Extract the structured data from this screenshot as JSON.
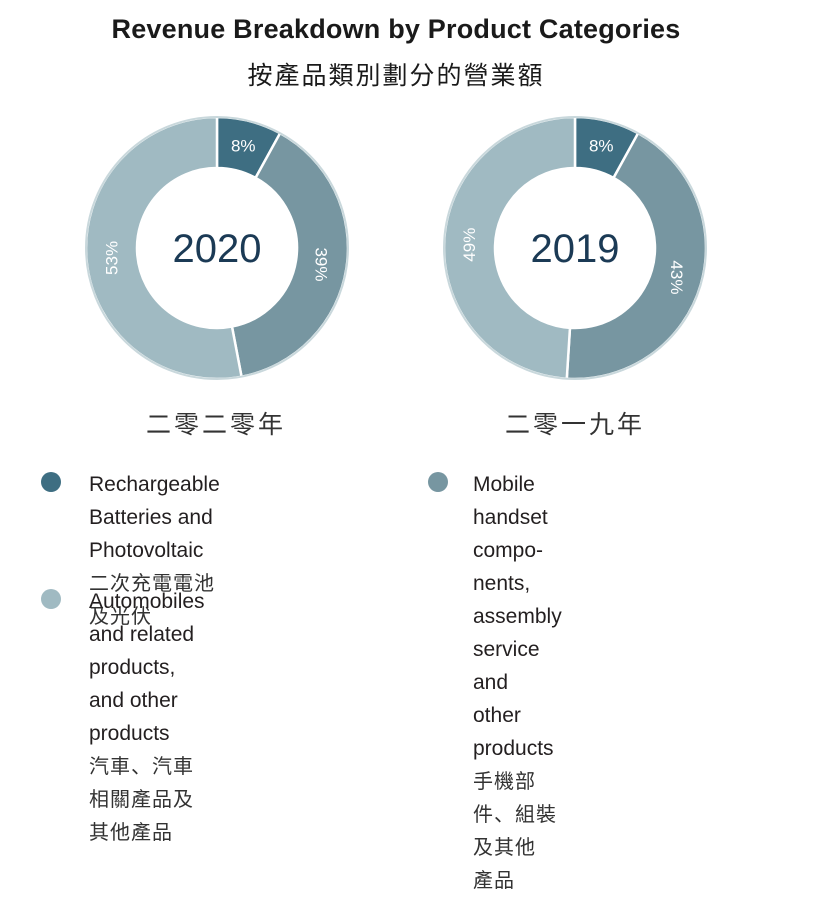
{
  "header": {
    "title_en": "Revenue Breakdown by Product Categories",
    "title_zh": "按產品類別劃分的營業額"
  },
  "colors": {
    "batteries": "#3e6e82",
    "mobile": "#7796a1",
    "automobiles": "#a0bac2",
    "center_text": "#1b3a55",
    "label_text": "#ffffff"
  },
  "chart_data": [
    {
      "type": "pie",
      "variant": "donut",
      "title": "2020",
      "subtitle_zh": "二零二零年",
      "categories": [
        "Rechargeable Batteries and Photovoltaic",
        "Mobile handset components, assembly service and other products",
        "Automobiles and related products, and other products"
      ],
      "values": [
        8,
        39,
        53
      ],
      "labels": [
        "8%",
        "39%",
        "53%"
      ],
      "unit": "%"
    },
    {
      "type": "pie",
      "variant": "donut",
      "title": "2019",
      "subtitle_zh": "二零一九年",
      "categories": [
        "Rechargeable Batteries and Photovoltaic",
        "Mobile handset components, assembly service and other products",
        "Automobiles and related products, and other products"
      ],
      "values": [
        8,
        43,
        49
      ],
      "labels": [
        "8%",
        "43%",
        "49%"
      ],
      "unit": "%"
    }
  ],
  "legend": {
    "placement": "bottom",
    "items": [
      {
        "key": "batteries",
        "en": [
          "Rechargeable Batteries and",
          "Photovoltaic"
        ],
        "zh": [
          "二次充電電池及光伏"
        ]
      },
      {
        "key": "mobile",
        "en": [
          "Mobile handset compo-",
          "nents, assembly service",
          "and other products"
        ],
        "zh": [
          "手機部件、組裝及其他",
          "產品"
        ]
      },
      {
        "key": "automobiles",
        "en": [
          "Automobiles and related",
          "products, and other products"
        ],
        "zh": [
          "汽車、汽車相關產品及其他產品"
        ]
      }
    ]
  }
}
